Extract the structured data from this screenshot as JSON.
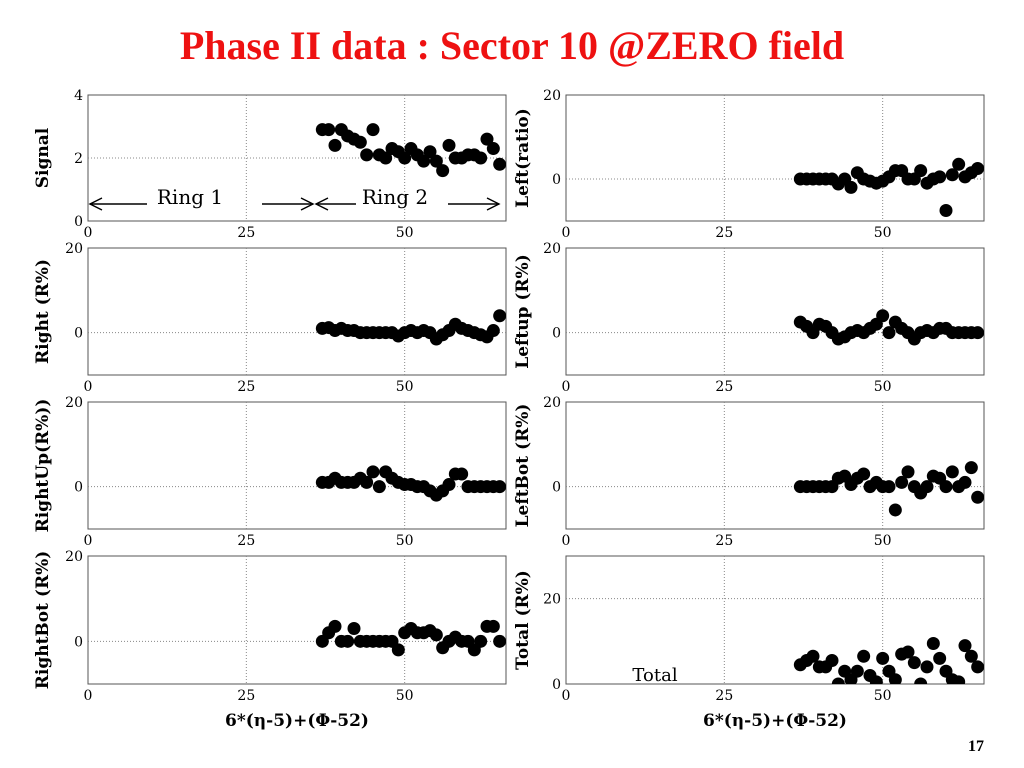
{
  "slide": {
    "title": "Phase II data : Sector 10 @ZERO field",
    "page_number": "17",
    "colors": {
      "title": "#ee1111",
      "markers": "#000000",
      "grid": "#888888"
    }
  },
  "chart_data": [
    {
      "id": "signal",
      "type": "scatter",
      "ylabel": "Signal",
      "xlabel": "",
      "xlim": [
        0,
        66
      ],
      "ylim": [
        0,
        4
      ],
      "xticks": [
        0,
        25,
        50
      ],
      "yticks": [
        0,
        2,
        4
      ],
      "grid": true,
      "annotations": [
        {
          "text": "Ring 1"
        },
        {
          "text": "Ring 2"
        }
      ],
      "x": [
        37,
        38,
        39,
        40,
        41,
        42,
        43,
        44,
        45,
        46,
        47,
        48,
        49,
        50,
        51,
        52,
        53,
        54,
        55,
        56,
        57,
        58,
        59,
        60,
        61,
        62,
        63,
        64,
        65
      ],
      "y": [
        2.9,
        2.9,
        2.4,
        2.9,
        2.7,
        2.6,
        2.5,
        2.1,
        2.9,
        2.1,
        2.0,
        2.3,
        2.2,
        2.0,
        2.3,
        2.1,
        1.9,
        2.2,
        1.9,
        1.6,
        2.4,
        2.0,
        2.0,
        2.1,
        2.1,
        2.0,
        2.6,
        2.3,
        1.8
      ]
    },
    {
      "id": "left",
      "type": "scatter",
      "ylabel": "Left(ratio)",
      "xlabel": "",
      "xlim": [
        0,
        66
      ],
      "ylim": [
        -10,
        20
      ],
      "xticks": [
        0,
        25,
        50
      ],
      "yticks": [
        0,
        20
      ],
      "grid": true,
      "x": [
        37,
        38,
        39,
        40,
        41,
        42,
        43,
        44,
        45,
        46,
        47,
        48,
        49,
        50,
        51,
        52,
        53,
        54,
        55,
        56,
        57,
        58,
        59,
        60,
        61,
        62,
        63,
        64,
        65
      ],
      "y": [
        0,
        0,
        0,
        0,
        0,
        0,
        -1.2,
        0,
        -2,
        1.5,
        0,
        -0.5,
        -1,
        -0.5,
        0.5,
        2,
        2,
        0,
        0,
        2,
        -1,
        0,
        0.5,
        -7.5,
        1,
        3.5,
        0.5,
        1.5,
        2.5
      ]
    },
    {
      "id": "right",
      "type": "scatter",
      "ylabel": "Right (R%)",
      "xlabel": "",
      "xlim": [
        0,
        66
      ],
      "ylim": [
        -10,
        20
      ],
      "xticks": [
        0,
        25,
        50
      ],
      "yticks": [
        0,
        20
      ],
      "grid": true,
      "x": [
        37,
        38,
        39,
        40,
        41,
        42,
        43,
        44,
        45,
        46,
        47,
        48,
        49,
        50,
        51,
        52,
        53,
        54,
        55,
        56,
        57,
        58,
        59,
        60,
        61,
        62,
        63,
        64,
        65
      ],
      "y": [
        1,
        1.2,
        0.5,
        1,
        0.5,
        0.5,
        0,
        0,
        0,
        0,
        0,
        0,
        -0.8,
        0,
        0.5,
        0,
        0.5,
        0,
        -1.5,
        -0.5,
        0.5,
        2,
        1,
        0.5,
        0,
        -0.5,
        -1,
        0.5,
        4
      ]
    },
    {
      "id": "leftup",
      "type": "scatter",
      "ylabel": "Leftup (R%)",
      "xlabel": "",
      "xlim": [
        0,
        66
      ],
      "ylim": [
        -10,
        20
      ],
      "xticks": [
        0,
        25,
        50
      ],
      "yticks": [
        0,
        20
      ],
      "grid": true,
      "x": [
        37,
        38,
        39,
        40,
        41,
        42,
        43,
        44,
        45,
        46,
        47,
        48,
        49,
        50,
        51,
        52,
        53,
        54,
        55,
        56,
        57,
        58,
        59,
        60,
        61,
        62,
        63,
        64,
        65
      ],
      "y": [
        2.5,
        1.5,
        0,
        2,
        1.5,
        0,
        -1.5,
        -1,
        0,
        0.5,
        0,
        1,
        2,
        4,
        0,
        2.5,
        1,
        0,
        -1.5,
        0,
        0.5,
        0,
        1,
        1,
        0,
        0,
        0,
        0,
        0
      ]
    },
    {
      "id": "rightup",
      "type": "scatter",
      "ylabel": "RightUp(R%))",
      "xlabel": "",
      "xlim": [
        0,
        66
      ],
      "ylim": [
        -10,
        20
      ],
      "xticks": [
        0,
        25,
        50
      ],
      "yticks": [
        0,
        20
      ],
      "grid": true,
      "x": [
        37,
        38,
        39,
        40,
        41,
        42,
        43,
        44,
        45,
        46,
        47,
        48,
        49,
        50,
        51,
        52,
        53,
        54,
        55,
        56,
        57,
        58,
        59,
        60,
        61,
        62,
        63,
        64,
        65
      ],
      "y": [
        1,
        1,
        2,
        1,
        1,
        1,
        2,
        1,
        3.5,
        0,
        3.5,
        2,
        1,
        0.5,
        0.5,
        0,
        0,
        -1,
        -2,
        -1,
        0.5,
        3,
        3,
        0,
        0,
        0,
        0,
        0,
        0
      ]
    },
    {
      "id": "leftbot",
      "type": "scatter",
      "ylabel": "LeftBot (R%)",
      "xlabel": "",
      "xlim": [
        0,
        66
      ],
      "ylim": [
        -10,
        20
      ],
      "xticks": [
        0,
        25,
        50
      ],
      "yticks": [
        0,
        20
      ],
      "grid": true,
      "x": [
        37,
        38,
        39,
        40,
        41,
        42,
        43,
        44,
        45,
        46,
        47,
        48,
        49,
        50,
        51,
        52,
        53,
        54,
        55,
        56,
        57,
        58,
        59,
        60,
        61,
        62,
        63,
        64,
        65
      ],
      "y": [
        0,
        0,
        0,
        0,
        0,
        0,
        2,
        2.5,
        0.5,
        2,
        3,
        0,
        1,
        0,
        0,
        -5.5,
        1,
        3.5,
        0,
        -1.5,
        0,
        2.5,
        2,
        0,
        3.5,
        0,
        1,
        4.5,
        -2.5
      ]
    },
    {
      "id": "rightbot",
      "type": "scatter",
      "ylabel": "RightBot (R%)",
      "xlabel": "6*(η-5)+(Φ-52)",
      "xlim": [
        0,
        66
      ],
      "ylim": [
        -10,
        20
      ],
      "xticks": [
        0,
        25,
        50
      ],
      "yticks": [
        0,
        20
      ],
      "grid": true,
      "x": [
        37,
        38,
        39,
        40,
        41,
        42,
        43,
        44,
        45,
        46,
        47,
        48,
        49,
        50,
        51,
        52,
        53,
        54,
        55,
        56,
        57,
        58,
        59,
        60,
        61,
        62,
        63,
        64,
        65
      ],
      "y": [
        0,
        2,
        3.5,
        0,
        0,
        3,
        0,
        0,
        0,
        0,
        0,
        0,
        -2,
        2,
        3,
        2,
        2,
        2.5,
        1.5,
        -1.5,
        0,
        1,
        0,
        0,
        -2,
        0,
        3.5,
        3.5,
        0
      ]
    },
    {
      "id": "total",
      "type": "scatter",
      "ylabel": "Total (R%)",
      "xlabel": "6*(η-5)+(Φ-52)",
      "xlim": [
        0,
        66
      ],
      "ylim": [
        0,
        30
      ],
      "xticks": [
        0,
        25,
        50
      ],
      "yticks": [
        0,
        20
      ],
      "grid": true,
      "annotations": [
        {
          "text": "Total"
        }
      ],
      "x": [
        37,
        38,
        39,
        40,
        41,
        42,
        43,
        44,
        45,
        46,
        47,
        48,
        49,
        50,
        51,
        52,
        53,
        54,
        55,
        56,
        57,
        58,
        59,
        60,
        61,
        62,
        63,
        64,
        65
      ],
      "y": [
        4.5,
        5.5,
        6.5,
        4,
        4,
        5.5,
        0,
        3,
        1,
        3,
        6.5,
        2,
        0.5,
        6,
        3,
        1,
        7,
        7.5,
        5,
        0,
        4,
        9.5,
        6,
        3,
        1,
        0.5,
        9,
        6.5,
        4
      ]
    }
  ]
}
